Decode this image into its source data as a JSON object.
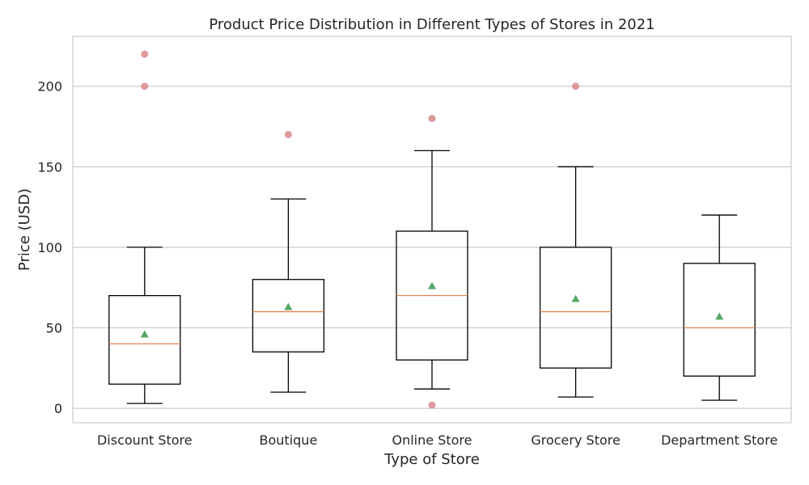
{
  "chart_data": {
    "type": "boxplot",
    "title": "Product Price Distribution in Different Types of Stores in 2021",
    "xlabel": "Type of Store",
    "ylabel": "Price (USD)",
    "ylim": [
      -9,
      231
    ],
    "yticks": [
      0,
      50,
      100,
      150,
      200
    ],
    "grid": "horizontal",
    "categories": [
      "Discount Store",
      "Boutique",
      "Online Store",
      "Grocery Store",
      "Department Store"
    ],
    "boxes": [
      {
        "category": "Discount Store",
        "whisker_low": 3,
        "q1": 15,
        "median": 40,
        "q3": 70,
        "whisker_high": 100,
        "mean": 46,
        "outliers": [
          200,
          220
        ]
      },
      {
        "category": "Boutique",
        "whisker_low": 10,
        "q1": 35,
        "median": 60,
        "q3": 80,
        "whisker_high": 130,
        "mean": 63,
        "outliers": [
          170
        ]
      },
      {
        "category": "Online Store",
        "whisker_low": 12,
        "q1": 30,
        "median": 70,
        "q3": 110,
        "whisker_high": 160,
        "mean": 76,
        "outliers": [
          180,
          2
        ]
      },
      {
        "category": "Grocery Store",
        "whisker_low": 7,
        "q1": 25,
        "median": 60,
        "q3": 100,
        "whisker_high": 150,
        "mean": 68,
        "outliers": [
          200
        ]
      },
      {
        "category": "Department Store",
        "whisker_low": 5,
        "q1": 20,
        "median": 50,
        "q3": 90,
        "whisker_high": 120,
        "mean": 57,
        "outliers": []
      }
    ],
    "colors": {
      "box": "#000000",
      "median": "#ee8259",
      "mean": "#55a868",
      "outlier": "#d9888d",
      "grid": "#cccccc",
      "frame": "#cccccc"
    }
  }
}
